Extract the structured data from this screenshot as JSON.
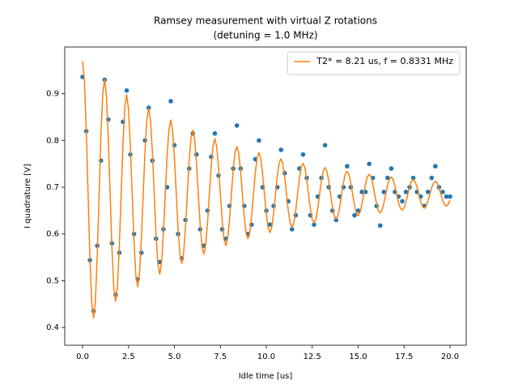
{
  "chart_data": {
    "type": "scatter-line",
    "title": "Ramsey measurement with virtual Z rotations",
    "subtitle": "(detuning = 1.0 MHz)",
    "x_label": "Idle time [us]",
    "y_label": "I quadrature [V]",
    "xlim": [
      -0.97,
      20.88
    ],
    "ylim": [
      0.362,
      1.0
    ],
    "xticks": [
      {
        "value": 0,
        "label": "0.0"
      },
      {
        "value": 2.5,
        "label": "2.5"
      },
      {
        "value": 5,
        "label": "5.0"
      },
      {
        "value": 7.5,
        "label": "7.5"
      },
      {
        "value": 10,
        "label": "10.0"
      },
      {
        "value": 12.5,
        "label": "12.5"
      },
      {
        "value": 15,
        "label": "15.0"
      },
      {
        "value": 17.5,
        "label": "17.5"
      },
      {
        "value": 20,
        "label": "20.0"
      }
    ],
    "yticks": [
      0.4,
      0.5,
      0.6,
      0.7,
      0.8,
      0.9
    ],
    "grid": false,
    "legend": "upper right",
    "series": [
      {
        "type": "scatter",
        "color": "#1f77b4",
        "x": [
          0,
          0.2,
          0.4,
          0.6,
          0.8,
          1,
          1.2,
          1.4,
          1.6,
          1.8,
          2,
          2.2,
          2.4,
          2.6,
          2.8,
          3,
          3.2,
          3.4,
          3.6,
          3.8,
          4,
          4.2,
          4.4,
          4.6,
          4.8,
          5,
          5.2,
          5.4,
          5.6,
          5.8,
          6,
          6.2,
          6.4,
          6.6,
          6.8,
          7,
          7.2,
          7.4,
          7.6,
          7.8,
          8,
          8.2,
          8.4,
          8.6,
          8.8,
          9,
          9.2,
          9.4,
          9.6,
          9.8,
          10,
          10.2,
          10.4,
          10.6,
          10.8,
          11,
          11.2,
          11.4,
          11.6,
          11.8,
          12,
          12.2,
          12.4,
          12.6,
          12.8,
          13,
          13.2,
          13.4,
          13.6,
          13.8,
          14,
          14.2,
          14.4,
          14.6,
          14.8,
          15,
          15.2,
          15.4,
          15.6,
          15.8,
          16,
          16.2,
          16.4,
          16.6,
          16.8,
          17,
          17.2,
          17.4,
          17.6,
          17.8,
          18,
          18.2,
          18.4,
          18.6,
          18.8,
          19,
          19.2,
          19.4,
          19.6,
          19.8,
          20
        ],
        "values": [
          0.936,
          0.82,
          0.544,
          0.435,
          0.575,
          0.757,
          0.93,
          0.845,
          0.58,
          0.47,
          0.56,
          0.84,
          0.907,
          0.77,
          0.6,
          0.503,
          0.56,
          0.8,
          0.87,
          0.757,
          0.59,
          0.54,
          0.61,
          0.7,
          0.884,
          0.79,
          0.6,
          0.548,
          0.63,
          0.74,
          0.815,
          0.77,
          0.61,
          0.575,
          0.65,
          0.765,
          0.815,
          0.725,
          0.61,
          0.59,
          0.66,
          0.74,
          0.832,
          0.74,
          0.66,
          0.6,
          0.62,
          0.76,
          0.8,
          0.7,
          0.65,
          0.62,
          0.66,
          0.7,
          0.78,
          0.73,
          0.67,
          0.61,
          0.64,
          0.74,
          0.77,
          0.72,
          0.64,
          0.62,
          0.68,
          0.72,
          0.79,
          0.7,
          0.65,
          0.63,
          0.68,
          0.7,
          0.745,
          0.7,
          0.64,
          0.65,
          0.69,
          0.69,
          0.75,
          0.72,
          0.66,
          0.618,
          0.69,
          0.72,
          0.74,
          0.69,
          0.68,
          0.67,
          0.69,
          0.7,
          0.72,
          0.69,
          0.68,
          0.66,
          0.69,
          0.72,
          0.745,
          0.7,
          0.69,
          0.68,
          0.68
        ]
      },
      {
        "type": "line",
        "name": "T2* = 8.21 us, f = 0.8331 MHz",
        "color": "#ff7f0e",
        "x": [
          0,
          0.1,
          0.2,
          0.3,
          0.4,
          0.5,
          0.6,
          0.7,
          0.8,
          0.9,
          1,
          1.1,
          1.2,
          1.3,
          1.4,
          1.5,
          1.6,
          1.7,
          1.8,
          1.9,
          2,
          2.1,
          2.2,
          2.3,
          2.4,
          2.5,
          2.6,
          2.7,
          2.8,
          2.9,
          3,
          3.1,
          3.2,
          3.3,
          3.4,
          3.5,
          3.6,
          3.7,
          3.8,
          3.9,
          4,
          4.1,
          4.2,
          4.3,
          4.4,
          4.5,
          4.6,
          4.7,
          4.8,
          4.9,
          5,
          5.1,
          5.2,
          5.3,
          5.4,
          5.5,
          5.6,
          5.7,
          5.8,
          5.9,
          6,
          6.1,
          6.2,
          6.3,
          6.4,
          6.5,
          6.6,
          6.7,
          6.8,
          6.9,
          7,
          7.1,
          7.2,
          7.3,
          7.4,
          7.5,
          7.6,
          7.7,
          7.8,
          7.9,
          8,
          8.1,
          8.2,
          8.3,
          8.4,
          8.5,
          8.6,
          8.7,
          8.8,
          8.9,
          9,
          9.1,
          9.2,
          9.3,
          9.4,
          9.5,
          9.6,
          9.7,
          9.8,
          9.9,
          10,
          10.1,
          10.2,
          10.3,
          10.4,
          10.5,
          10.6,
          10.7,
          10.8,
          10.9,
          11,
          11.1,
          11.2,
          11.3,
          11.4,
          11.5,
          11.6,
          11.7,
          11.8,
          11.9,
          12,
          12.1,
          12.2,
          12.3,
          12.4,
          12.5,
          12.6,
          12.7,
          12.8,
          12.9,
          13,
          13.1,
          13.2,
          13.3,
          13.4,
          13.5,
          13.6,
          13.7,
          13.8,
          13.9,
          14,
          14.1,
          14.2,
          14.3,
          14.4,
          14.5,
          14.6,
          14.7,
          14.8,
          14.9,
          15,
          15.1,
          15.2,
          15.3,
          15.4,
          15.5,
          15.6,
          15.7,
          15.8,
          15.9,
          16,
          16.1,
          16.2,
          16.3,
          16.4,
          16.5,
          16.6,
          16.7,
          16.8,
          16.9,
          17,
          17.1,
          17.2,
          17.3,
          17.4,
          17.5,
          17.6,
          17.7,
          17.8,
          17.9,
          18,
          18.1,
          18.2,
          18.3,
          18.4,
          18.5,
          18.6,
          18.7,
          18.8,
          18.9,
          19,
          19.1,
          19.2,
          19.3,
          19.4,
          19.5,
          19.6,
          19.7,
          19.8,
          19.9,
          20
        ],
        "values": [
          0.97,
          0.929,
          0.824,
          0.685,
          0.549,
          0.453,
          0.42,
          0.458,
          0.556,
          0.685,
          0.811,
          0.901,
          0.931,
          0.896,
          0.805,
          0.685,
          0.568,
          0.484,
          0.456,
          0.489,
          0.573,
          0.685,
          0.794,
          0.872,
          0.898,
          0.867,
          0.789,
          0.685,
          0.584,
          0.512,
          0.487,
          0.516,
          0.589,
          0.685,
          0.779,
          0.846,
          0.869,
          0.842,
          0.775,
          0.685,
          0.597,
          0.535,
          0.514,
          0.539,
          0.602,
          0.685,
          0.766,
          0.824,
          0.844,
          0.821,
          0.763,
          0.685,
          0.609,
          0.556,
          0.537,
          0.559,
          0.613,
          0.685,
          0.755,
          0.805,
          0.822,
          0.802,
          0.752,
          0.685,
          0.62,
          0.573,
          0.557,
          0.576,
          0.623,
          0.685,
          0.746,
          0.789,
          0.804,
          0.786,
          0.743,
          0.685,
          0.629,
          0.588,
          0.575,
          0.591,
          0.631,
          0.685,
          0.738,
          0.775,
          0.787,
          0.773,
          0.735,
          0.685,
          0.636,
          0.602,
          0.59,
          0.604,
          0.639,
          0.685,
          0.73,
          0.763,
          0.774,
          0.761,
          0.728,
          0.685,
          0.643,
          0.613,
          0.603,
          0.615,
          0.645,
          0.685,
          0.724,
          0.752,
          0.761,
          0.75,
          0.722,
          0.685,
          0.649,
          0.623,
          0.614,
          0.624,
          0.65,
          0.685,
          0.719,
          0.743,
          0.751,
          0.742,
          0.717,
          0.685,
          0.654,
          0.631,
          0.624,
          0.632,
          0.655,
          0.685,
          0.714,
          0.735,
          0.742,
          0.734,
          0.713,
          0.685,
          0.658,
          0.639,
          0.632,
          0.64,
          0.659,
          0.685,
          0.71,
          0.728,
          0.734,
          0.727,
          0.709,
          0.685,
          0.662,
          0.645,
          0.639,
          0.646,
          0.663,
          0.685,
          0.707,
          0.722,
          0.728,
          0.722,
          0.706,
          0.685,
          0.665,
          0.65,
          0.645,
          0.651,
          0.666,
          0.685,
          0.704,
          0.717,
          0.722,
          0.717,
          0.703,
          0.685,
          0.667,
          0.655,
          0.651,
          0.656,
          0.668,
          0.685,
          0.701,
          0.713,
          0.717,
          0.712,
          0.701,
          0.685,
          0.67,
          0.659,
          0.655,
          0.66,
          0.671,
          0.685,
          0.699,
          0.709,
          0.713,
          0.709,
          0.699,
          0.685,
          0.672,
          0.663,
          0.66,
          0.663,
          0.673
        ]
      }
    ]
  }
}
